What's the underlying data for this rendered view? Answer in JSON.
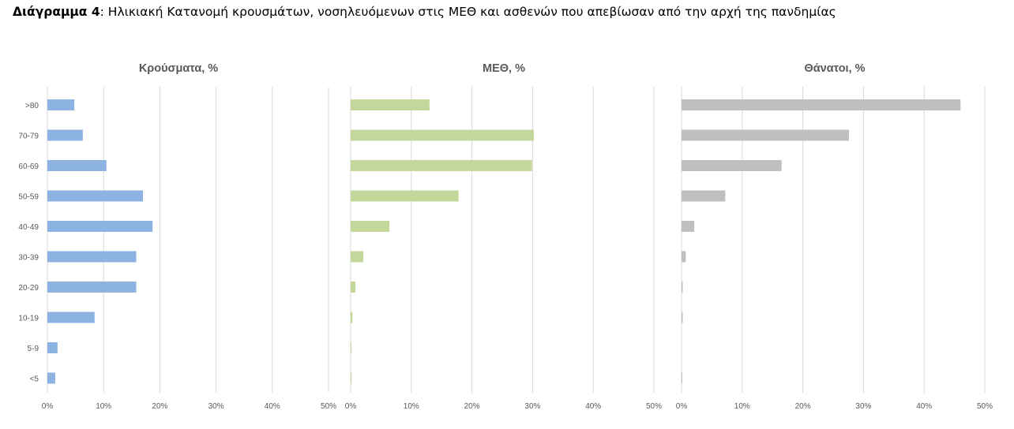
{
  "caption": {
    "label": "Διάγραμμα 4",
    "text": ": Ηλικιακή Κατανομή κρουσμάτων, νοσηλευόμενων στις ΜΕΘ και ασθενών που απεβίωσαν από την αρχή της πανδημίας"
  },
  "chart_data": [
    {
      "type": "bar",
      "orientation": "horizontal",
      "title": "Κρούσματα, %",
      "categories": [
        ">80",
        "70-79",
        "60-69",
        "50-59",
        "40-49",
        "30-39",
        "20-29",
        "10-19",
        "5-9",
        "<5"
      ],
      "values": [
        4.8,
        6.3,
        10.5,
        17.0,
        18.7,
        15.8,
        15.8,
        8.4,
        1.8,
        1.4
      ],
      "xlim": [
        0,
        50
      ],
      "xticks": [
        "0%",
        "10%",
        "20%",
        "30%",
        "40%",
        "50%"
      ],
      "grid": true,
      "color": "#8db3e2"
    },
    {
      "type": "bar",
      "orientation": "horizontal",
      "title": "ΜΕΘ, %",
      "categories": [
        ">80",
        "70-79",
        "60-69",
        "50-59",
        "40-49",
        "30-39",
        "20-29",
        "10-19",
        "5-9",
        "<5"
      ],
      "values": [
        13.0,
        30.2,
        29.9,
        17.8,
        6.4,
        2.1,
        0.8,
        0.3,
        0.1,
        0.1
      ],
      "xlim": [
        0,
        50
      ],
      "xticks": [
        "0%",
        "10%",
        "20%",
        "30%",
        "40%",
        "50%"
      ],
      "grid": true,
      "color": "#c4d79b"
    },
    {
      "type": "bar",
      "orientation": "horizontal",
      "title": "Θάνατοι, %",
      "categories": [
        ">80",
        "70-79",
        "60-69",
        "50-59",
        "40-49",
        "30-39",
        "20-29",
        "10-19",
        "5-9",
        "<5"
      ],
      "values": [
        46.0,
        27.6,
        16.5,
        7.2,
        2.1,
        0.7,
        0.2,
        0.2,
        0.0,
        0.1
      ],
      "xlim": [
        0,
        50
      ],
      "xticks": [
        "0%",
        "10%",
        "20%",
        "30%",
        "40%",
        "50%"
      ],
      "grid": true,
      "color": "#bfbfbf"
    }
  ]
}
